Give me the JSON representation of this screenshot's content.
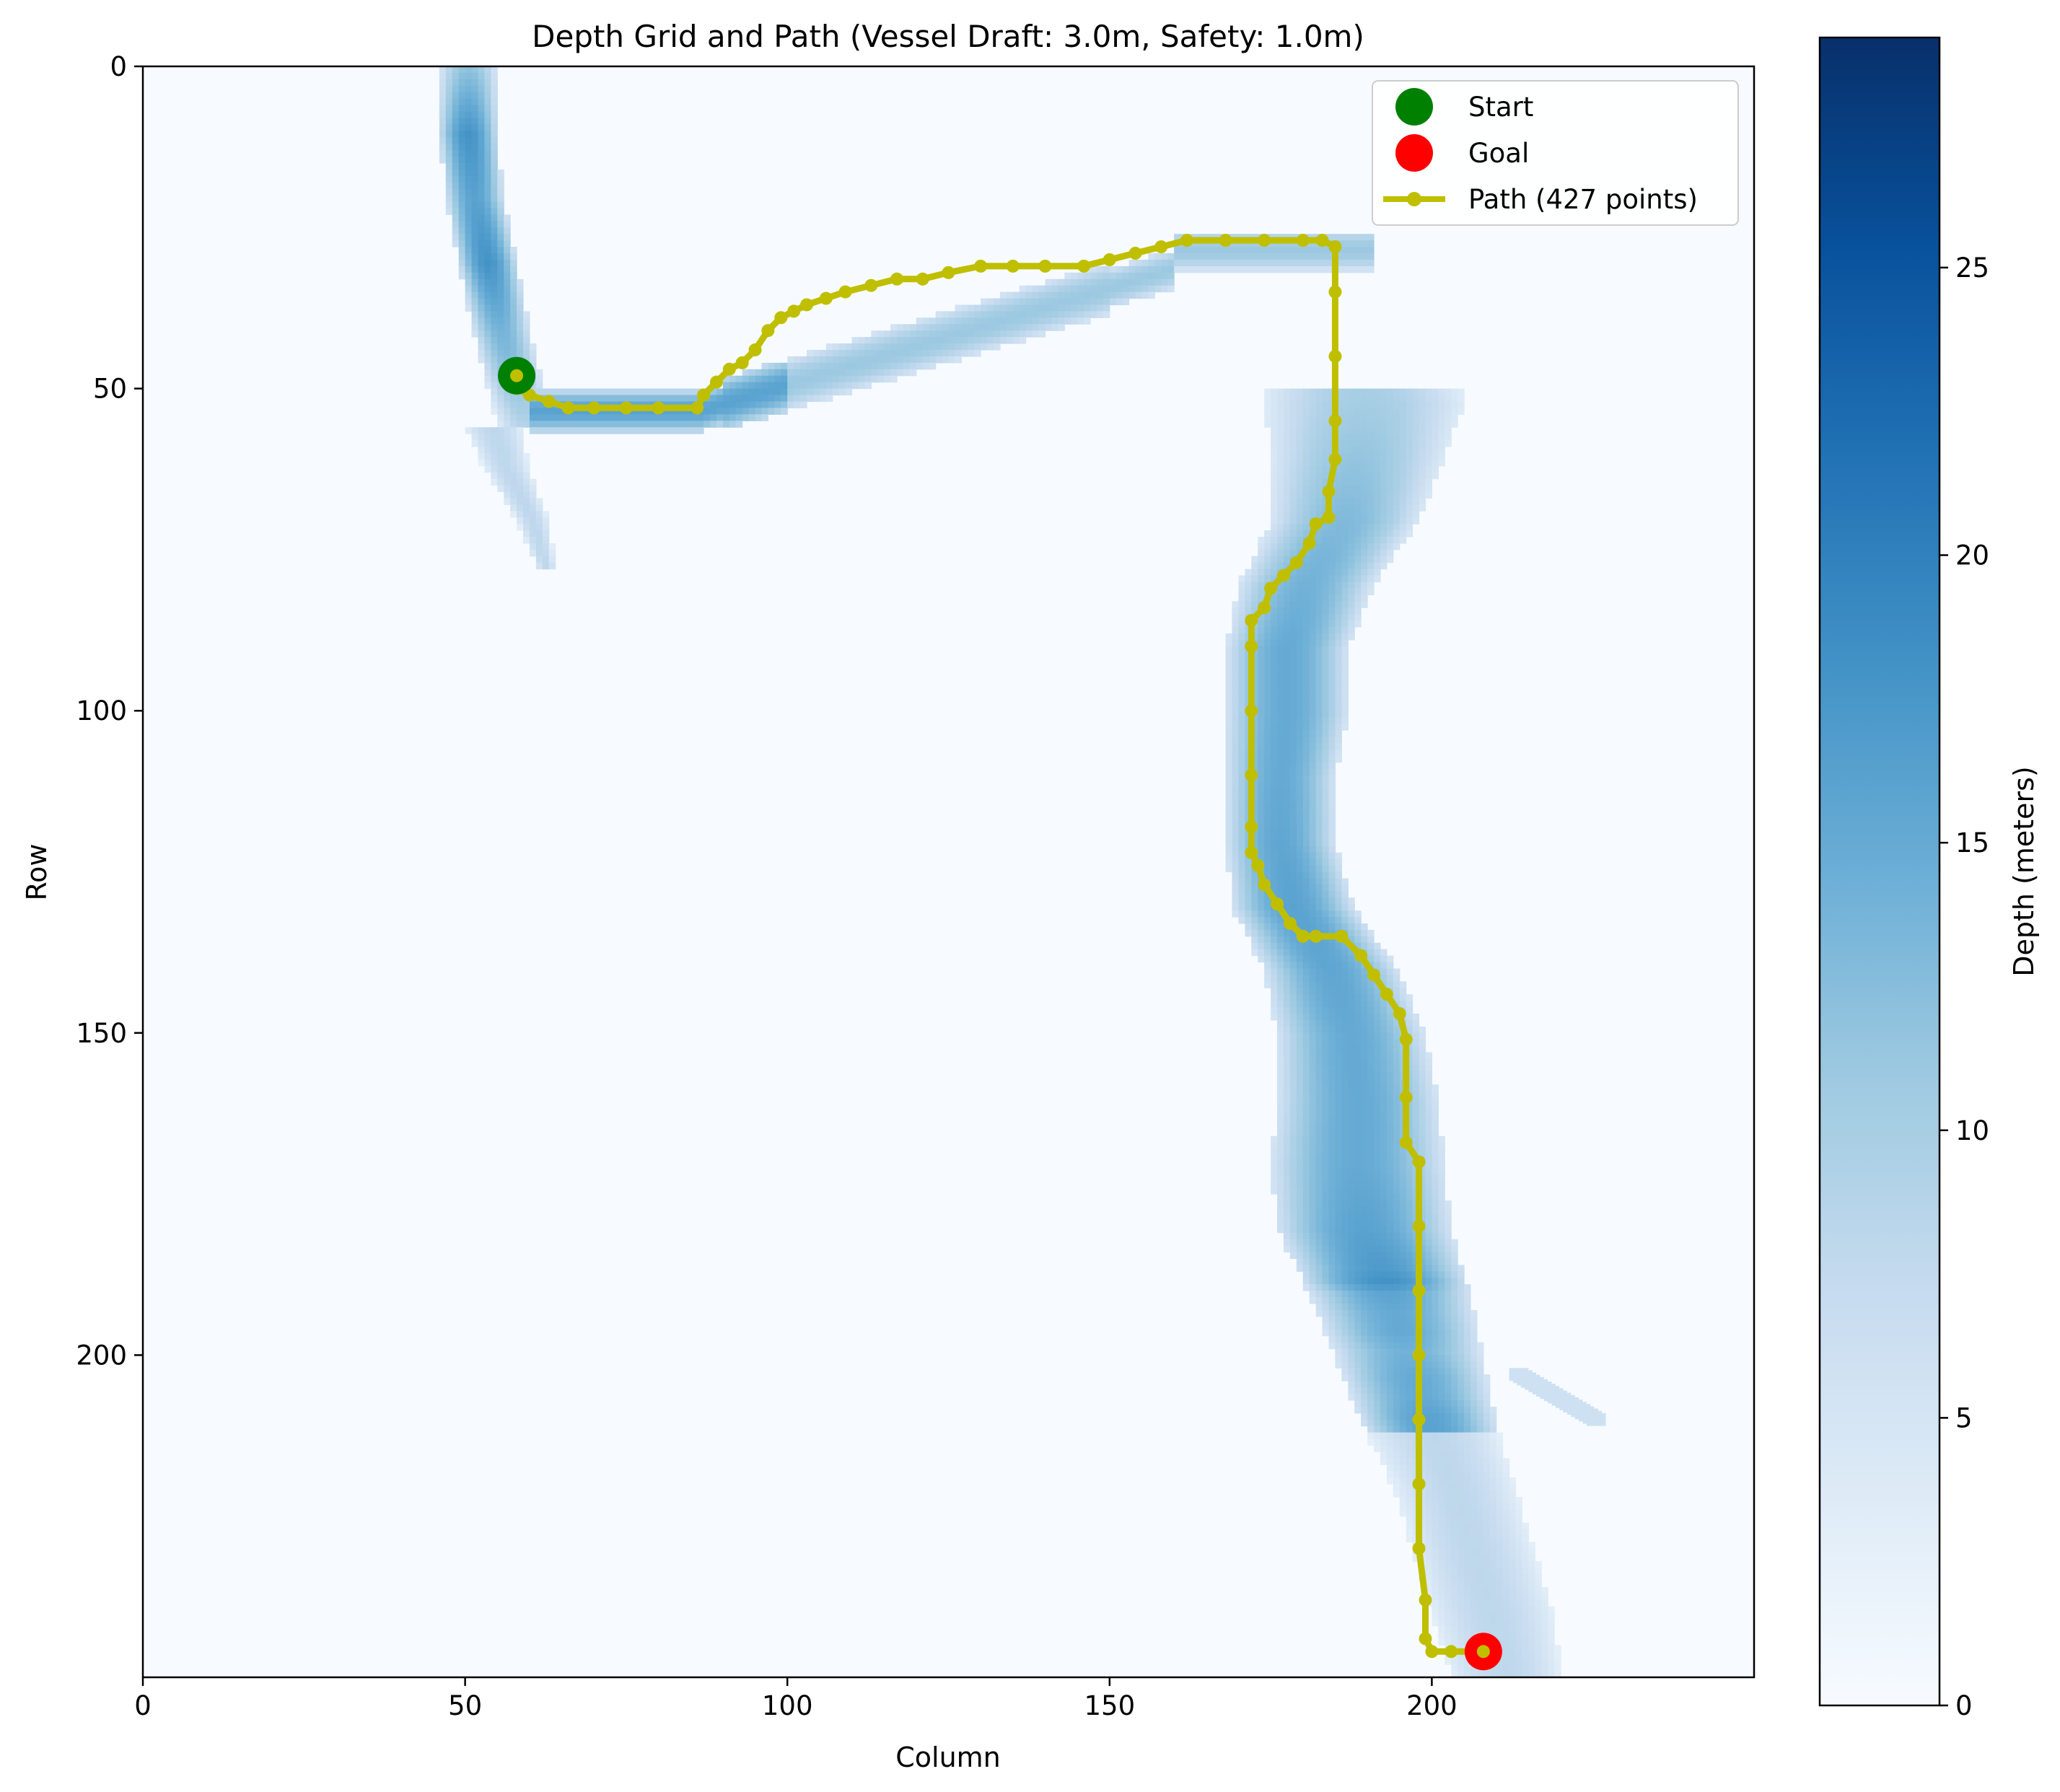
{
  "chart_data": {
    "type": "heatmap",
    "title": "Depth Grid and Path (Vessel Draft: 3.0m, Safety: 1.0m)",
    "xlabel": "Column",
    "ylabel": "Row",
    "xlim": [
      0,
      250
    ],
    "ylim": [
      250,
      0
    ],
    "x_ticks": [
      0,
      50,
      100,
      150,
      200
    ],
    "y_ticks": [
      0,
      50,
      100,
      150,
      200
    ],
    "colormap": "Blues",
    "colorbar": {
      "label": "Depth (meters)",
      "range": [
        0,
        29
      ],
      "ticks": [
        0,
        5,
        10,
        15,
        20,
        25
      ]
    },
    "colors": {
      "start": "#008000",
      "goal": "#ff0000",
      "path": "#bfbf00"
    },
    "legend": {
      "placement": "upper-right",
      "entries": [
        "Start",
        "Goal",
        "Path (427 points)"
      ]
    },
    "start": {
      "name": "Start",
      "col": 58,
      "row": 48
    },
    "goal": {
      "name": "Goal",
      "col": 208,
      "row": 246
    },
    "path": {
      "name": "Path (427 points)",
      "points": [
        [
          58,
          48
        ],
        [
          58,
          50
        ],
        [
          60,
          51
        ],
        [
          63,
          52
        ],
        [
          66,
          53
        ],
        [
          70,
          53
        ],
        [
          75,
          53
        ],
        [
          80,
          53
        ],
        [
          86,
          53
        ],
        [
          87,
          51
        ],
        [
          89,
          49
        ],
        [
          91,
          47
        ],
        [
          93,
          46
        ],
        [
          95,
          44
        ],
        [
          97,
          41
        ],
        [
          99,
          39
        ],
        [
          101,
          38
        ],
        [
          103,
          37
        ],
        [
          106,
          36
        ],
        [
          109,
          35
        ],
        [
          113,
          34
        ],
        [
          117,
          33
        ],
        [
          121,
          33
        ],
        [
          125,
          32
        ],
        [
          130,
          31
        ],
        [
          135,
          31
        ],
        [
          140,
          31
        ],
        [
          146,
          31
        ],
        [
          150,
          30
        ],
        [
          154,
          29
        ],
        [
          158,
          28
        ],
        [
          162,
          27
        ],
        [
          168,
          27
        ],
        [
          174,
          27
        ],
        [
          180,
          27
        ],
        [
          183,
          27
        ],
        [
          185,
          28
        ],
        [
          185,
          35
        ],
        [
          185,
          45
        ],
        [
          185,
          55
        ],
        [
          185,
          61
        ],
        [
          184,
          66
        ],
        [
          184,
          70
        ],
        [
          182,
          71
        ],
        [
          181,
          74
        ],
        [
          179,
          77
        ],
        [
          177,
          79
        ],
        [
          175,
          81
        ],
        [
          174,
          84
        ],
        [
          172,
          86
        ],
        [
          172,
          90
        ],
        [
          172,
          100
        ],
        [
          172,
          110
        ],
        [
          172,
          118
        ],
        [
          172,
          122
        ],
        [
          173,
          124
        ],
        [
          174,
          127
        ],
        [
          176,
          130
        ],
        [
          178,
          133
        ],
        [
          180,
          135
        ],
        [
          182,
          135
        ],
        [
          186,
          135
        ],
        [
          189,
          138
        ],
        [
          191,
          141
        ],
        [
          193,
          144
        ],
        [
          195,
          147
        ],
        [
          196,
          151
        ],
        [
          196,
          160
        ],
        [
          196,
          167
        ],
        [
          198,
          170
        ],
        [
          198,
          180
        ],
        [
          198,
          190
        ],
        [
          198,
          200
        ],
        [
          198,
          210
        ],
        [
          198,
          220
        ],
        [
          198,
          230
        ],
        [
          199,
          238
        ],
        [
          199,
          244
        ],
        [
          200,
          246
        ],
        [
          203,
          246
        ],
        [
          206,
          246
        ],
        [
          208,
          246
        ]
      ]
    },
    "depth_channel": {
      "main_centerline": [
        [
          0,
          50,
          4
        ],
        [
          10,
          50,
          4
        ],
        [
          20,
          51,
          4
        ],
        [
          30,
          53,
          4
        ],
        [
          40,
          55,
          4
        ],
        [
          48,
          57,
          4
        ],
        [
          55,
          59,
          4
        ]
      ],
      "main_depths": [
        [
          0,
          12
        ],
        [
          10,
          18
        ],
        [
          20,
          16
        ],
        [
          30,
          18
        ],
        [
          40,
          14
        ],
        [
          48,
          12
        ],
        [
          55,
          9
        ]
      ],
      "side_channel": [
        [
          56,
          54,
          4
        ],
        [
          62,
          56,
          3
        ],
        [
          70,
          60,
          2
        ],
        [
          77,
          62,
          1
        ]
      ],
      "east_channel": [
        [
          50,
          70,
          7
        ],
        [
          48,
          80,
          8
        ],
        [
          44,
          90,
          8
        ],
        [
          40,
          100,
          8
        ],
        [
          36,
          110,
          8
        ],
        [
          34,
          120,
          9
        ],
        [
          32,
          130,
          9
        ],
        [
          31,
          140,
          9
        ],
        [
          30,
          150,
          9
        ],
        [
          29,
          160,
          8
        ],
        [
          29,
          170,
          8
        ],
        [
          29,
          180,
          8
        ],
        [
          32,
          186,
          10
        ],
        [
          42,
          188,
          14
        ],
        [
          52,
          189,
          15
        ],
        [
          60,
          188,
          13
        ],
        [
          70,
          186,
          11
        ],
        [
          80,
          180,
          10
        ],
        [
          90,
          177,
          9
        ],
        [
          100,
          177,
          9
        ],
        [
          110,
          176,
          8
        ],
        [
          120,
          176,
          8
        ],
        [
          130,
          178,
          9
        ],
        [
          140,
          184,
          10
        ],
        [
          150,
          187,
          11
        ],
        [
          160,
          188,
          12
        ],
        [
          170,
          188,
          13
        ],
        [
          180,
          189,
          13
        ],
        [
          190,
          193,
          12
        ],
        [
          200,
          196,
          11
        ],
        [
          210,
          199,
          10
        ],
        [
          220,
          203,
          9
        ],
        [
          230,
          206,
          9
        ],
        [
          240,
          209,
          9
        ],
        [
          249,
          211,
          8
        ]
      ],
      "east_depths": [
        [
          50,
          10
        ],
        [
          70,
          13
        ],
        [
          90,
          15
        ],
        [
          110,
          15
        ],
        [
          130,
          16
        ],
        [
          150,
          15
        ],
        [
          170,
          15
        ],
        [
          180,
          16
        ],
        [
          186,
          17
        ],
        [
          188,
          18
        ],
        [
          189,
          17
        ],
        [
          188,
          16
        ],
        [
          186,
          18
        ],
        [
          180,
          17
        ],
        [
          177,
          18
        ],
        [
          177,
          19
        ],
        [
          176,
          22
        ],
        [
          176,
          25
        ],
        [
          178,
          28
        ],
        [
          184,
          22
        ],
        [
          187,
          18
        ],
        [
          188,
          16
        ],
        [
          188,
          17
        ],
        [
          189,
          16
        ],
        [
          193,
          15
        ],
        [
          196,
          15
        ],
        [
          199,
          14
        ],
        [
          203,
          15
        ],
        [
          206,
          15
        ],
        [
          209,
          16
        ],
        [
          211,
          16
        ]
      ]
    }
  }
}
